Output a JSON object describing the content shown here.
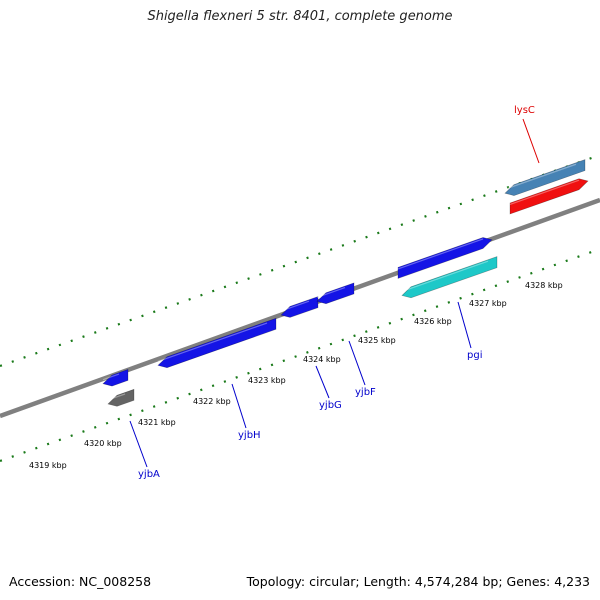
{
  "title": "Shigella flexneri 5 str. 8401, complete genome",
  "footer": {
    "accession": "Accession: NC_008258",
    "summary": "Topology: circular; Length: 4,574,284 bp; Genes: 4,233"
  },
  "colors": {
    "backbone": "#808080",
    "tick": "#1a7a1a",
    "gene_blue": "#1414e6",
    "gene_cyan": "#1ec8c8",
    "gene_red": "#f01010",
    "gene_steel": "#4682b4",
    "gene_gray": "#646464",
    "label_blue": "#0000cc",
    "label_red": "#dd0000"
  },
  "ruler_labels": [
    "4319 kbp",
    "4320 kbp",
    "4321 kbp",
    "4322 kbp",
    "4323 kbp",
    "4324 kbp",
    "4325 kbp",
    "4326 kbp",
    "4327 kbp",
    "4328 kbp"
  ],
  "genes": [
    {
      "name": "yjbA",
      "color": "gene_blue",
      "label_color": "label_blue"
    },
    {
      "name": "yjbH",
      "color": "gene_blue",
      "label_color": "label_blue"
    },
    {
      "name": "yjbG",
      "color": "gene_blue",
      "label_color": "label_blue"
    },
    {
      "name": "yjbF",
      "color": "gene_blue",
      "label_color": "label_blue"
    },
    {
      "name": "pgi",
      "color": "gene_blue",
      "label_color": "label_blue"
    },
    {
      "name": "lysC",
      "color": "gene_red",
      "label_color": "label_red"
    }
  ]
}
